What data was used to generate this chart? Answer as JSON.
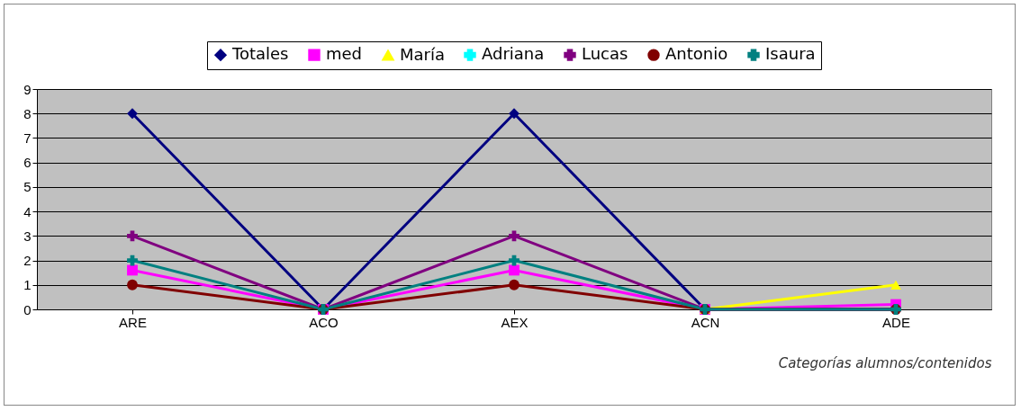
{
  "chart_data": {
    "type": "line",
    "xlabel": "Categorías alumnos/contenidos",
    "categories": [
      "ARE",
      "ACO",
      "AEX",
      "ACN",
      "ADE"
    ],
    "series": [
      {
        "name": "Totales",
        "color": "#000080",
        "marker": "diamond",
        "values": [
          8,
          0,
          8,
          0,
          0
        ]
      },
      {
        "name": "med",
        "color": "#ff00ff",
        "marker": "square",
        "values": [
          1.6,
          0,
          1.6,
          0,
          0.2
        ]
      },
      {
        "name": "María",
        "color": "#ffff00",
        "marker": "triangle",
        "values": [
          null,
          null,
          null,
          0,
          1
        ]
      },
      {
        "name": "Adriana",
        "color": "#00ffff",
        "marker": "cross",
        "values": [
          null,
          null,
          null,
          null,
          null
        ]
      },
      {
        "name": "Lucas",
        "color": "#800080",
        "marker": "cross",
        "values": [
          3,
          0,
          3,
          0,
          0
        ]
      },
      {
        "name": "Antonio",
        "color": "#800000",
        "marker": "circle",
        "values": [
          1,
          0,
          1,
          0,
          0
        ]
      },
      {
        "name": "Isaura",
        "color": "#008080",
        "marker": "cross",
        "values": [
          2,
          0,
          2,
          0,
          0
        ]
      }
    ],
    "ylim": [
      0,
      9
    ],
    "yticks": [
      0,
      1,
      2,
      3,
      4,
      5,
      6,
      7,
      8,
      9
    ],
    "grid": "y",
    "legend": "top"
  }
}
